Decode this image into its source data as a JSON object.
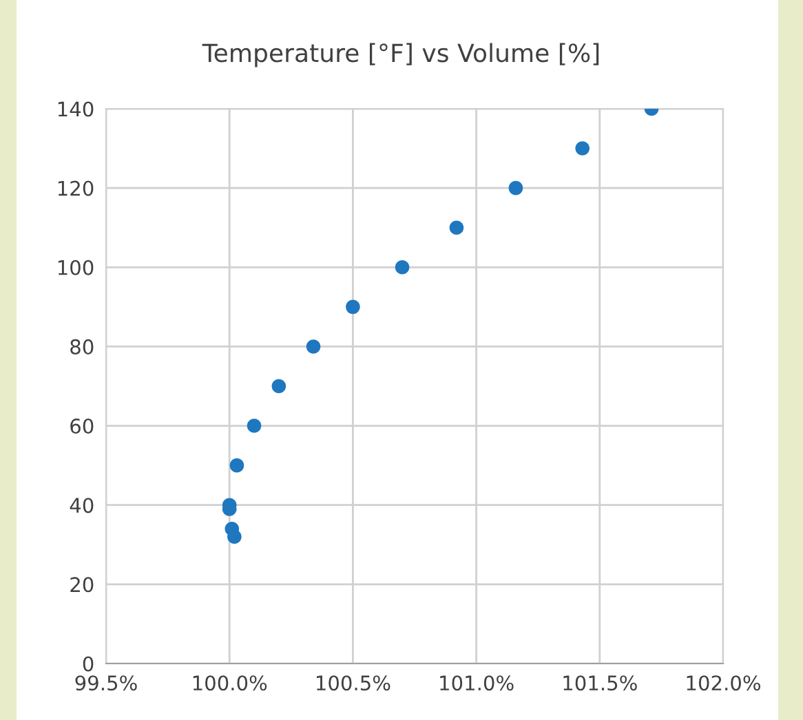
{
  "chart_data": {
    "type": "scatter",
    "title": "Temperature [°F] vs Volume [%]",
    "x": [
      101.71,
      101.43,
      101.16,
      100.92,
      100.7,
      100.5,
      100.34,
      100.2,
      100.1,
      100.03,
      100.0,
      100.0,
      100.01,
      100.02
    ],
    "series": [
      {
        "color": "#1f77c0",
        "values": [
          140,
          130,
          120,
          110,
          100,
          90,
          80,
          70,
          60,
          50,
          40,
          39,
          34,
          32
        ]
      }
    ],
    "xlim": [
      99.5,
      102.0
    ],
    "xticks": [
      {
        "value": 99.5,
        "label": "99.5%"
      },
      {
        "value": 100.0,
        "label": "100.0%"
      },
      {
        "value": 100.5,
        "label": "100.5%"
      },
      {
        "value": 101.0,
        "label": "101.0%"
      },
      {
        "value": 101.5,
        "label": "101.5%"
      },
      {
        "value": 102.0,
        "label": "102.0%"
      }
    ],
    "ylim": [
      0,
      140
    ],
    "yticks": [
      0,
      20,
      40,
      60,
      80,
      100,
      120,
      140
    ],
    "grid": true,
    "marker": "circle"
  }
}
